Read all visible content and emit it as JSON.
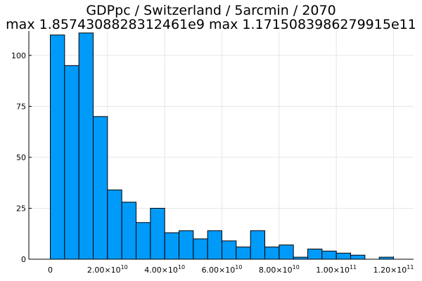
{
  "chart_data": {
    "type": "bar",
    "title_line1": "GDPpc / Switzerland / 5arcmin / 2070",
    "title_line2": "max 1.8574308828312461e9  max 1.1715083986279915e11",
    "xlabel": "",
    "ylabel": "",
    "bin_width": 5000000000,
    "bin_start": 0,
    "values": [
      110,
      95,
      111,
      70,
      34,
      28,
      18,
      25,
      13,
      14,
      10,
      14,
      9,
      6,
      14,
      6,
      7,
      1,
      5,
      4,
      3,
      2,
      0,
      1
    ],
    "xlim": [
      -7500000000,
      127000000000
    ],
    "ylim": [
      0,
      112
    ],
    "y_ticks": [
      0,
      25,
      50,
      75,
      100
    ],
    "y_tick_labels": [
      "0",
      "25",
      "50",
      "75",
      "100"
    ],
    "x_ticks": [
      0,
      20000000000,
      40000000000,
      60000000000,
      80000000000,
      100000000000,
      120000000000
    ],
    "x_tick_labels": [
      {
        "base": "0",
        "exp": ""
      },
      {
        "base": "2.00×10",
        "exp": "10"
      },
      {
        "base": "4.00×10",
        "exp": "10"
      },
      {
        "base": "6.00×10",
        "exp": "10"
      },
      {
        "base": "8.00×10",
        "exp": "10"
      },
      {
        "base": "1.00×10",
        "exp": "11"
      },
      {
        "base": "1.20×10",
        "exp": "11"
      }
    ],
    "grid": true,
    "legend": "none",
    "bar_color": "#009af9",
    "bar_edge_color": "#000000"
  }
}
